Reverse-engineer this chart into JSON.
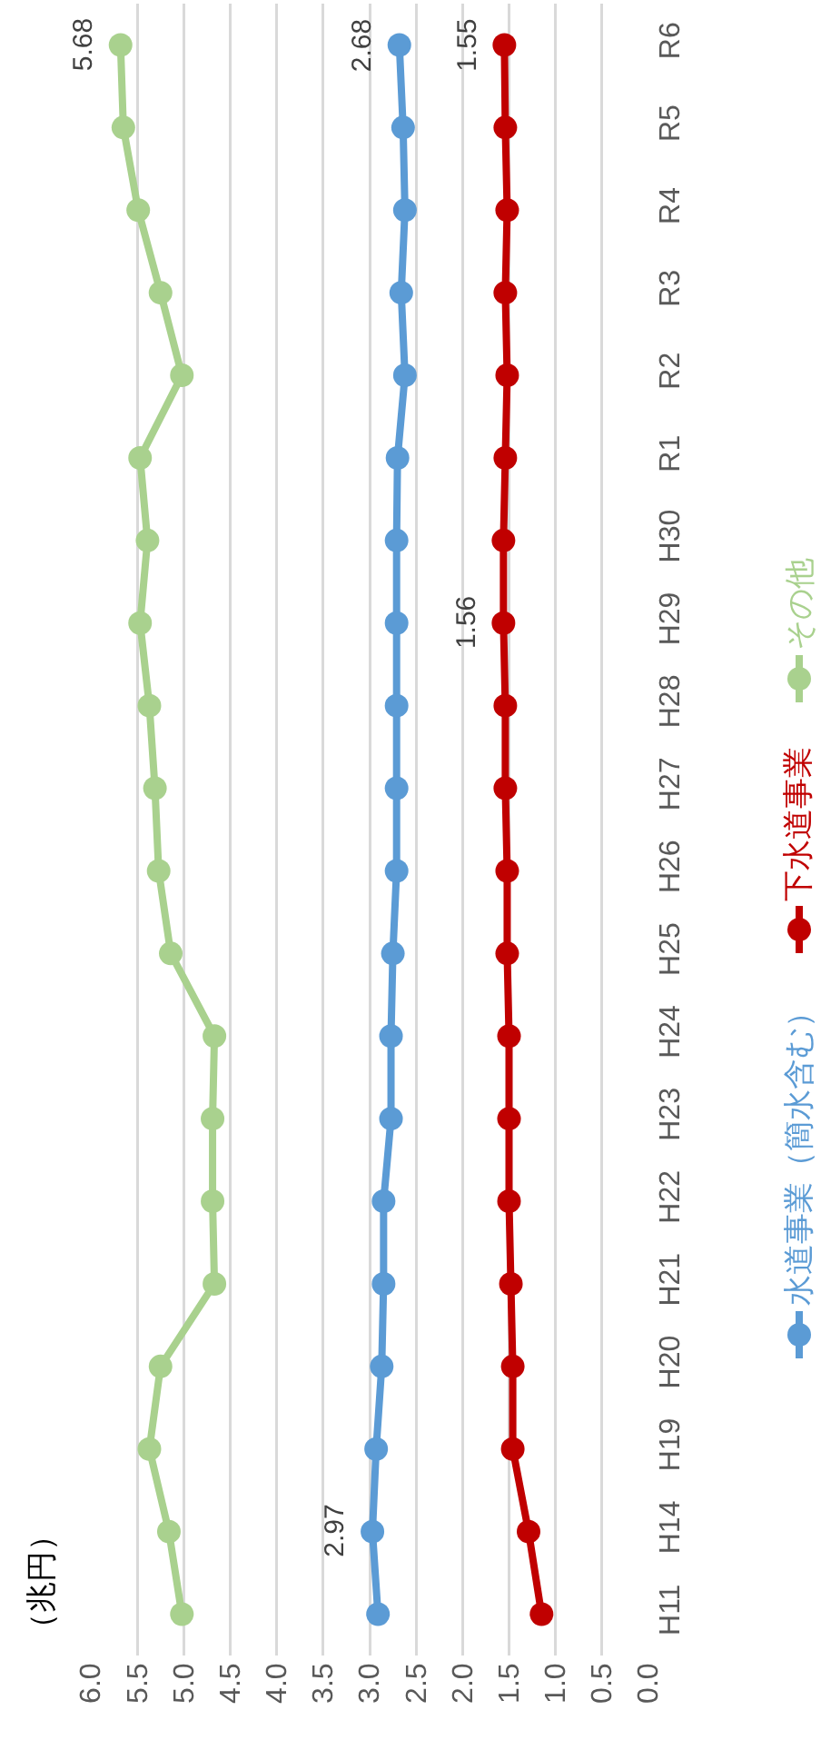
{
  "chart_data": {
    "type": "line",
    "orientation": "horizontal",
    "ylabel": "（兆円）",
    "categories": [
      "R6",
      "R5",
      "R4",
      "R3",
      "R2",
      "R1",
      "H30",
      "H29",
      "H28",
      "H27",
      "H26",
      "H25",
      "H24",
      "H23",
      "H22",
      "H21",
      "H20",
      "H19",
      "H14",
      "H11"
    ],
    "series": [
      {
        "name": "水道事業（簡水含む）",
        "color": "#5b9bd5",
        "values": [
          2.68,
          2.64,
          2.62,
          2.66,
          2.62,
          2.7,
          2.71,
          2.71,
          2.71,
          2.71,
          2.71,
          2.75,
          2.77,
          2.77,
          2.85,
          2.85,
          2.87,
          2.93,
          2.97,
          2.91
        ],
        "value_labels": [
          "2.68",
          null,
          null,
          null,
          null,
          null,
          null,
          null,
          null,
          null,
          null,
          null,
          null,
          null,
          null,
          null,
          null,
          null,
          "2.97",
          null
        ]
      },
      {
        "name": "下水道事業",
        "color": "#c00000",
        "values": [
          1.55,
          1.54,
          1.52,
          1.54,
          1.52,
          1.54,
          1.56,
          1.56,
          1.54,
          1.54,
          1.52,
          1.52,
          1.5,
          1.5,
          1.5,
          1.48,
          1.46,
          1.46,
          1.29,
          1.15
        ],
        "value_labels": [
          "1.55",
          null,
          null,
          null,
          null,
          null,
          null,
          "1.56",
          null,
          null,
          null,
          null,
          null,
          null,
          null,
          null,
          null,
          null,
          null,
          null
        ]
      },
      {
        "name": "その他",
        "color": "#a9d18e",
        "values": [
          5.68,
          5.65,
          5.49,
          5.25,
          5.02,
          5.47,
          5.39,
          5.47,
          5.37,
          5.31,
          5.27,
          5.14,
          4.67,
          4.69,
          4.69,
          4.67,
          5.25,
          5.37,
          5.16,
          5.02
        ],
        "value_labels": [
          "5.68",
          null,
          null,
          null,
          null,
          null,
          null,
          null,
          null,
          null,
          null,
          null,
          null,
          null,
          null,
          null,
          null,
          null,
          null,
          null
        ]
      }
    ],
    "xlim": [
      6,
      0
    ],
    "xticks": [
      {
        "value": 0,
        "label": "0.0"
      },
      {
        "value": 0.5,
        "label": "0.5"
      },
      {
        "value": 1,
        "label": "1.0"
      },
      {
        "value": 1.5,
        "label": "1.5"
      },
      {
        "value": 2,
        "label": "2.0"
      },
      {
        "value": 2.5,
        "label": "2.5"
      },
      {
        "value": 3,
        "label": "3.0"
      },
      {
        "value": 3.5,
        "label": "3.5"
      },
      {
        "value": 4,
        "label": "4.0"
      },
      {
        "value": 4.5,
        "label": "4.5"
      },
      {
        "value": 5,
        "label": "5.0"
      },
      {
        "value": 5.5,
        "label": "5.5"
      },
      {
        "value": 6,
        "label": "6.0"
      }
    ],
    "grid": "x",
    "legend": "right",
    "marker": "circle",
    "line_style": "solid"
  }
}
